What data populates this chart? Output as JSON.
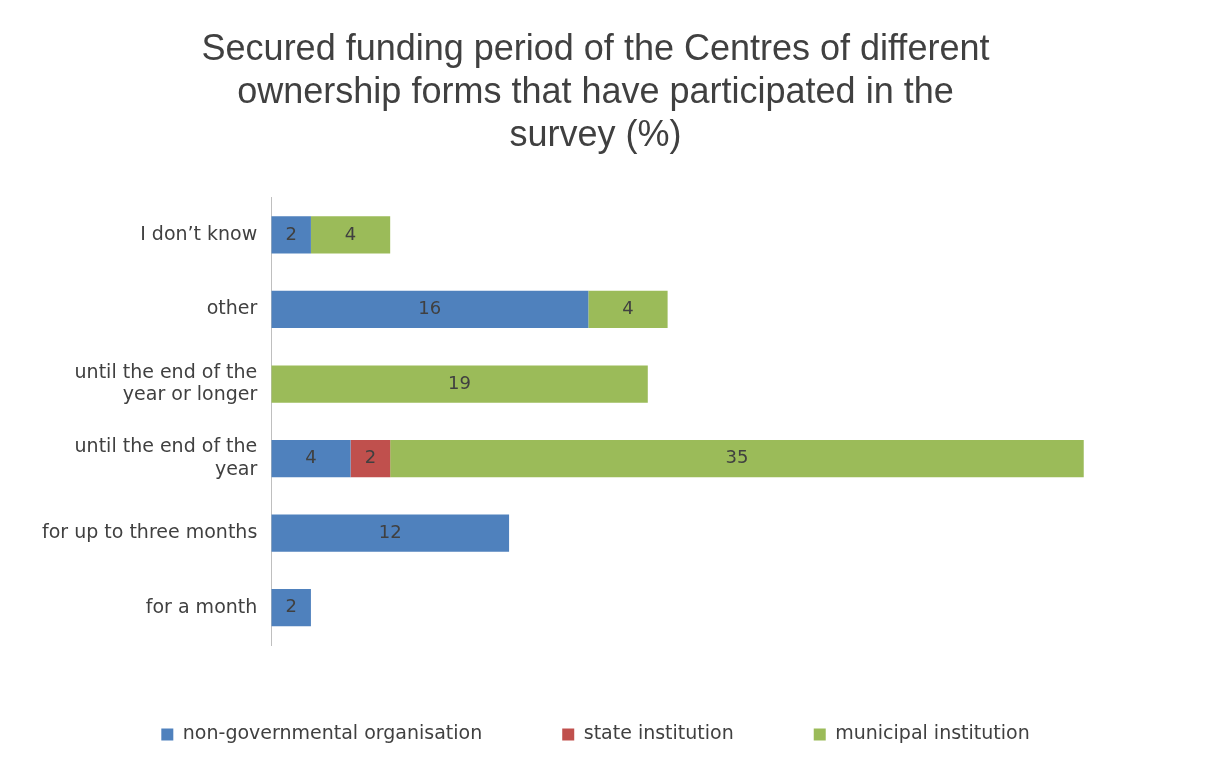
{
  "chart_data": {
    "type": "bar",
    "orientation": "horizontal",
    "stacked": true,
    "title": "Secured funding period of the Centres of different ownership forms that have participated in the survey (%)",
    "categories": [
      "I don’t know",
      "other",
      "until the end of the year or longer",
      "until the end of the year",
      "for up to three months",
      "for a month"
    ],
    "series": [
      {
        "name": "non-governmental organisation",
        "color": "#4f81bd",
        "values": [
          2,
          16,
          null,
          4,
          12,
          2
        ]
      },
      {
        "name": "state institution",
        "color": "#c0504d",
        "values": [
          null,
          null,
          null,
          2,
          null,
          null
        ]
      },
      {
        "name": "municipal institution",
        "color": "#9bbb59",
        "values": [
          4,
          4,
          19,
          35,
          null,
          null
        ]
      }
    ],
    "data_labels": true,
    "grid": false,
    "legend": "bottom"
  }
}
